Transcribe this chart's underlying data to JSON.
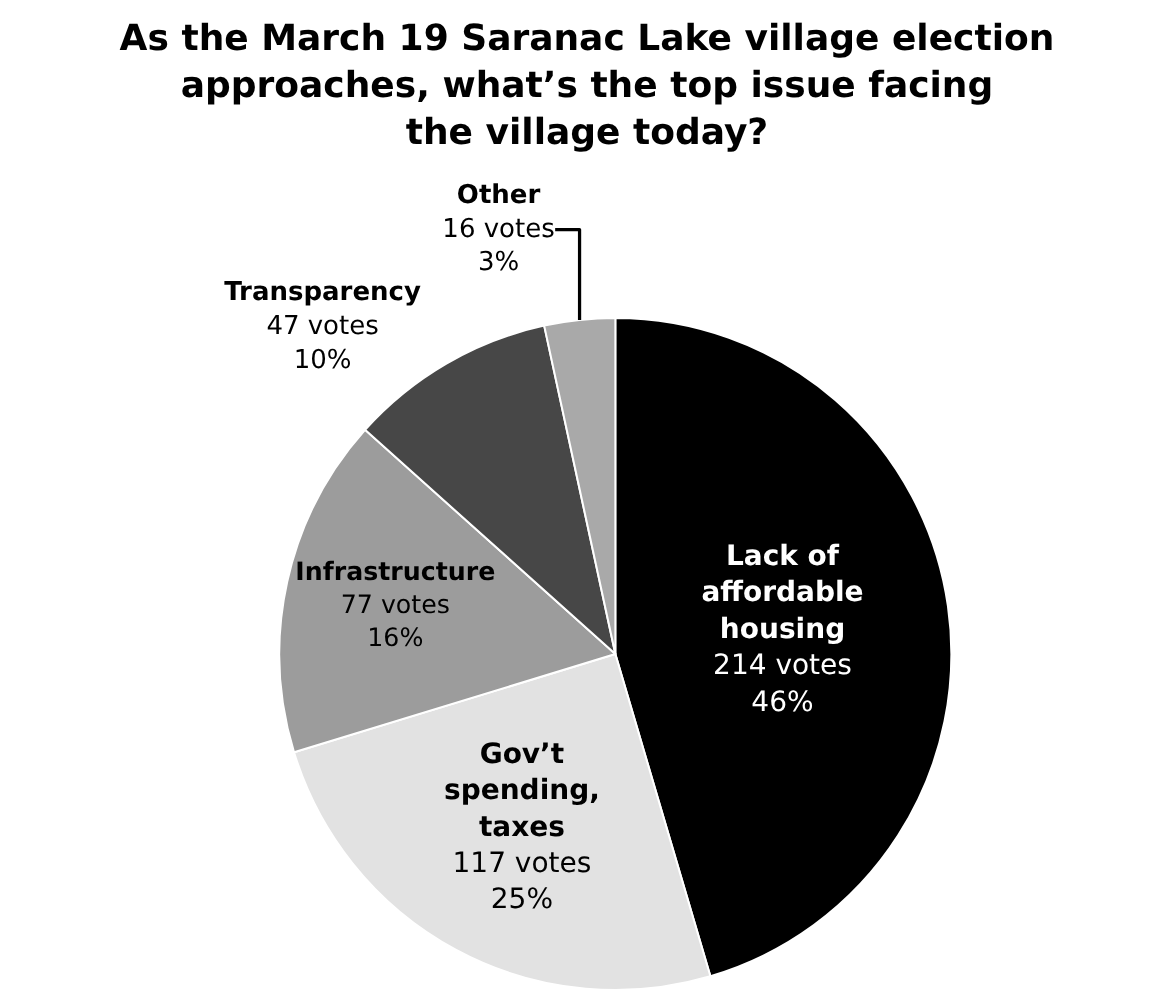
{
  "chart_data": {
    "type": "pie",
    "title": "As the March 19 Saranac Lake village election\napproaches, what’s the top issue facing\nthe village today?",
    "categories": [
      "Lack of\naffordable\nhousing",
      "Gov’t\nspending,\ntaxes",
      "Infrastructure",
      "Transparency",
      "Other"
    ],
    "values": [
      214,
      117,
      77,
      47,
      16
    ],
    "value_labels": [
      "214 votes\n46%",
      "117 votes\n25%",
      "77 votes\n16%",
      "47 votes\n10%",
      "16 votes\n3%"
    ],
    "colors": [
      "#000000",
      "#e2e2e2",
      "#9c9c9c",
      "#474747",
      "#a9a9a9"
    ]
  }
}
